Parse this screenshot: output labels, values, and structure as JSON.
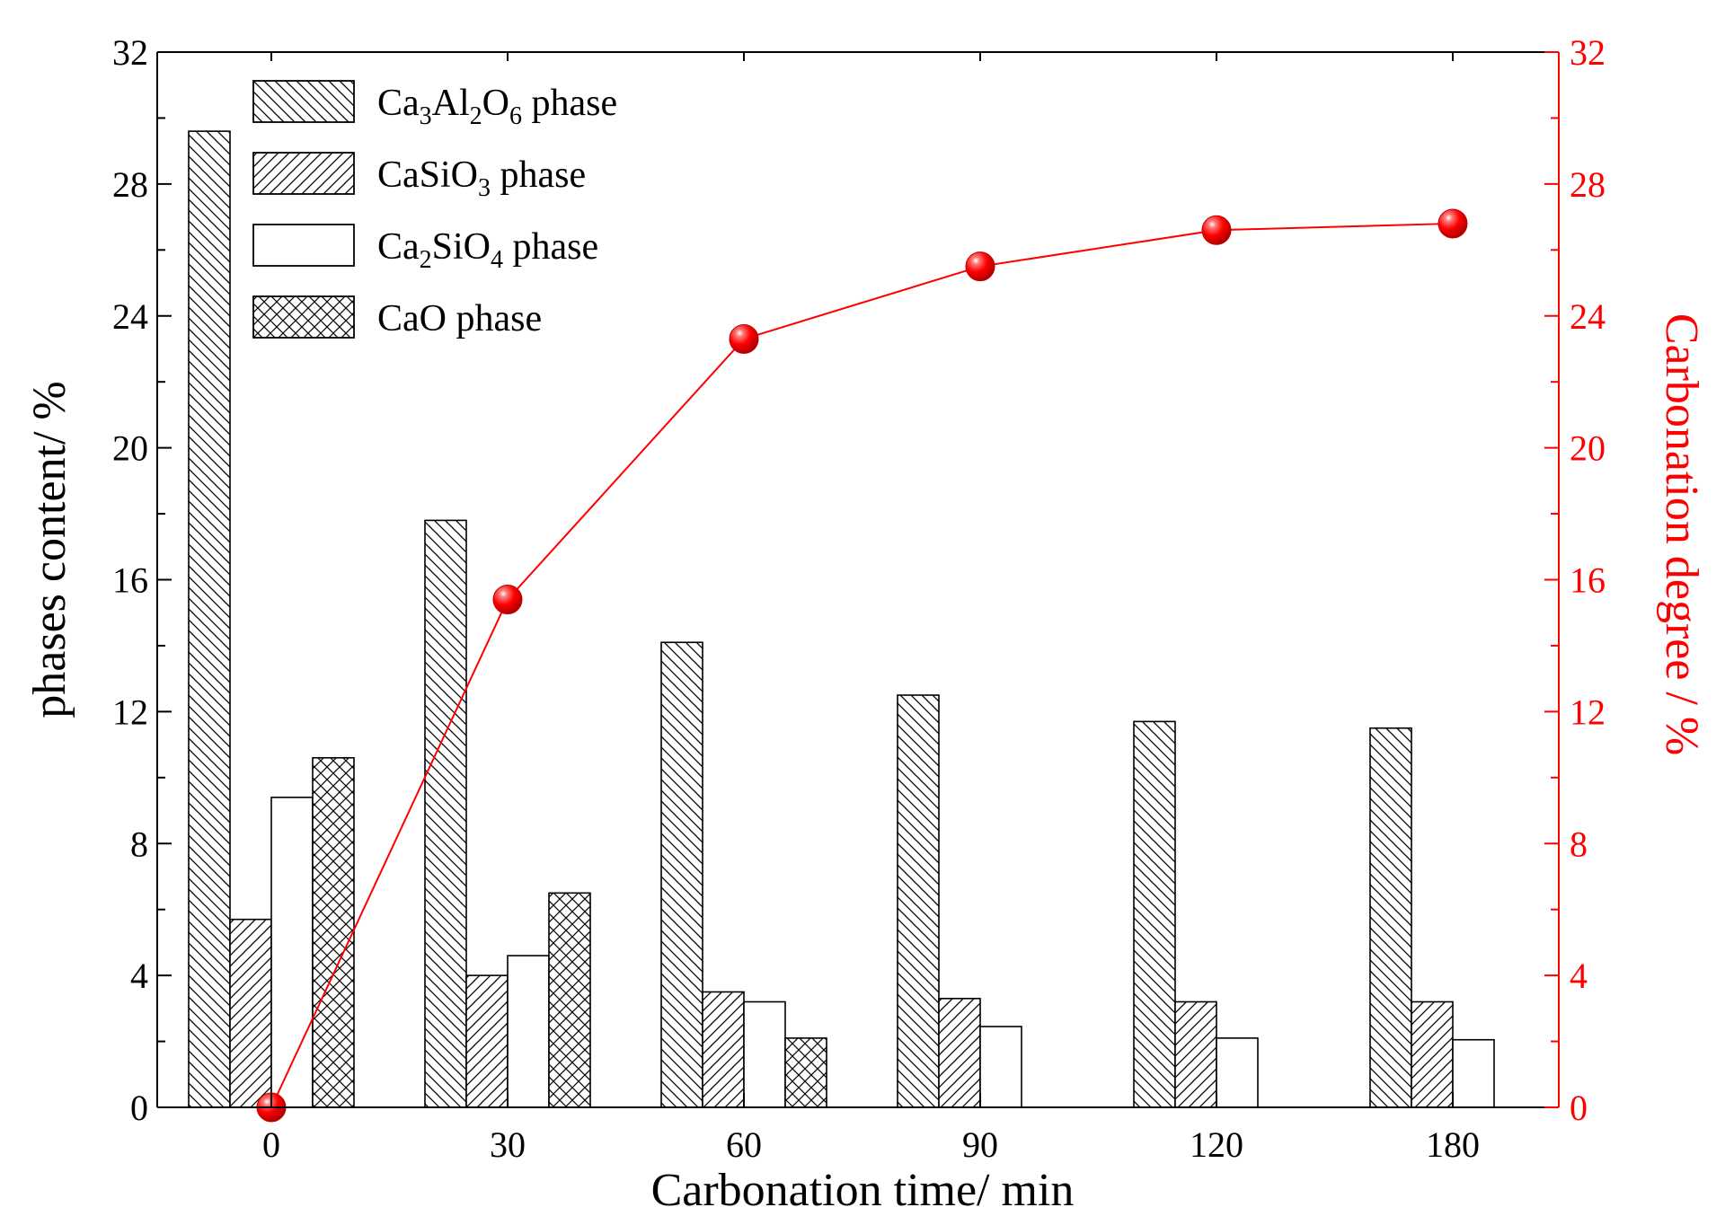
{
  "chart_data": {
    "type": "bar",
    "categories": [
      "0",
      "30",
      "60",
      "90",
      "120",
      "180"
    ],
    "series": [
      {
        "name": "Ca3Al2O6 phase",
        "legend": {
          "base": "Ca",
          "parts": [
            [
              "3",
              "sub"
            ],
            [
              "Al",
              ""
            ],
            [
              "2",
              "sub"
            ],
            [
              "O",
              ""
            ],
            [
              "6",
              "sub"
            ],
            [
              " phase",
              ""
            ]
          ]
        },
        "pattern": "back-diagonal",
        "values": [
          29.6,
          17.8,
          14.1,
          12.5,
          11.7,
          11.5
        ]
      },
      {
        "name": "CaSiO3 phase",
        "legend": {
          "base": "CaSiO",
          "parts": [
            [
              "3",
              "sub"
            ],
            [
              " phase",
              ""
            ]
          ]
        },
        "pattern": "diagonal",
        "values": [
          5.7,
          4.0,
          3.5,
          3.3,
          3.2,
          3.2
        ]
      },
      {
        "name": "Ca2SiO4 phase",
        "legend": {
          "base": "Ca",
          "parts": [
            [
              "2",
              "sub"
            ],
            [
              "SiO",
              ""
            ],
            [
              "4",
              "sub"
            ],
            [
              " phase",
              ""
            ]
          ]
        },
        "pattern": "none",
        "values": [
          9.4,
          4.6,
          3.2,
          2.45,
          2.1,
          2.05
        ]
      },
      {
        "name": "CaO phase",
        "legend": {
          "base": "CaO phase",
          "parts": []
        },
        "pattern": "cross",
        "values": [
          10.6,
          6.5,
          2.1,
          0,
          0,
          0
        ]
      }
    ],
    "line_series": {
      "name": "Carbonation degree",
      "axis": "right",
      "color": "#ff0000",
      "values": [
        0,
        15.4,
        23.3,
        25.5,
        26.6,
        26.8
      ]
    },
    "xlabel": "Carbonation time/ min",
    "ylabel": "phases content/ %",
    "y2label": "Carbonation degree / %",
    "ylim": [
      0,
      32
    ],
    "y2lim": [
      0,
      32
    ],
    "yticks": [
      0,
      4,
      8,
      12,
      16,
      20,
      24,
      28,
      32
    ],
    "y2ticks": [
      0,
      4,
      8,
      12,
      16,
      20,
      24,
      28,
      32
    ],
    "legend_position": "top-left",
    "grid": false,
    "axis_color": "#000000",
    "right_axis_color": "#ff0000"
  }
}
